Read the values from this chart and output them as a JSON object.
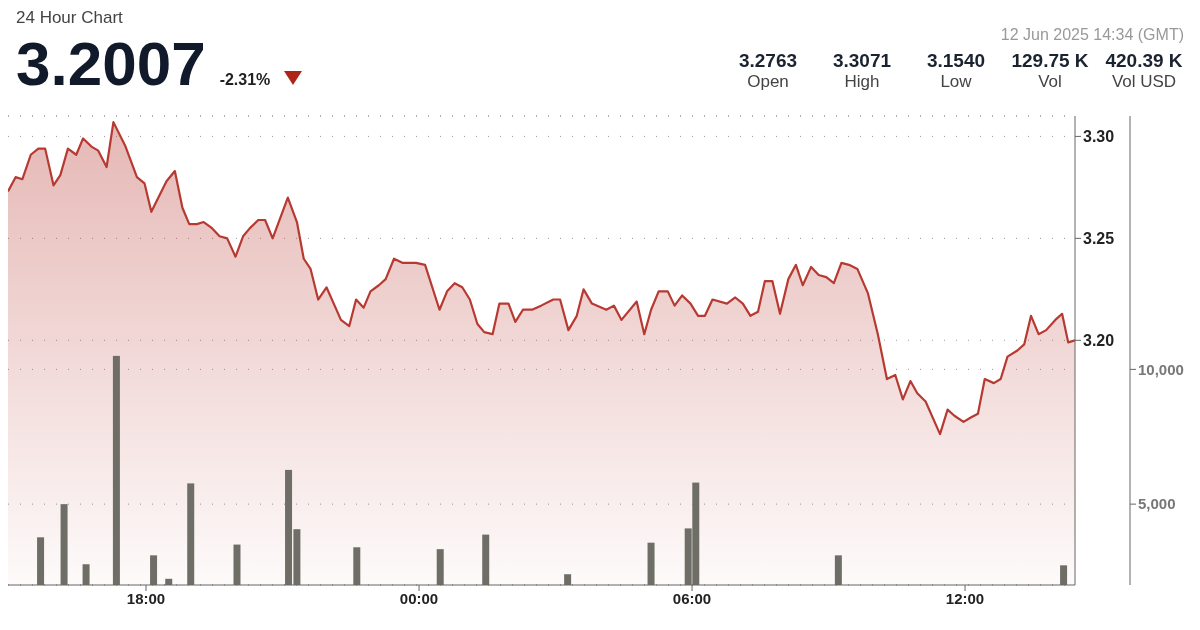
{
  "chart_data": {
    "type": "area",
    "title": "24 Hour Chart",
    "annotations": [
      "3.2007",
      "-2.31%",
      "12 Jun 2025 14:34 (GMT)",
      "3.2763",
      "Open",
      "3.3071",
      "High",
      "3.1540",
      "Low",
      "129.75 K",
      "Vol",
      "420.39 K",
      "Vol USD"
    ],
    "xlim": [
      "2025-06-11T14:58",
      "2025-06-12T14:25"
    ],
    "xticks": [
      {
        "value": "2025-06-11T18:00",
        "label": "18:00"
      },
      {
        "value": "2025-06-12T00:00",
        "label": "00:00"
      },
      {
        "value": "2025-06-12T06:00",
        "label": "06:00"
      },
      {
        "value": "2025-06-12T12:00",
        "label": "12:00"
      }
    ],
    "ylim": [
      3.08,
      3.31
    ],
    "yticks": [
      {
        "value": 3.2,
        "label": "3.20"
      },
      3.25,
      {
        "value": 3.3,
        "label": "3.30"
      }
    ],
    "y2lim": [
      2000,
      19400
    ],
    "y2ticks": [
      {
        "value": 5000,
        "label": "5,000"
      },
      {
        "value": 10000,
        "label": "10,000"
      }
    ],
    "grid": "y",
    "legend": false,
    "series": [
      {
        "color": "#b73a32",
        "x": [
          "2025-06-11T14:58",
          "2025-06-11T15:08",
          "2025-06-11T15:17",
          "2025-06-11T15:28",
          "2025-06-11T15:38",
          "2025-06-11T15:47",
          "2025-06-11T15:58",
          "2025-06-11T16:07",
          "2025-06-11T16:17",
          "2025-06-11T16:28",
          "2025-06-11T16:37",
          "2025-06-11T16:48",
          "2025-06-11T16:57",
          "2025-06-11T17:08",
          "2025-06-11T17:17",
          "2025-06-11T17:33",
          "2025-06-11T17:48",
          "2025-06-11T17:58",
          "2025-06-11T18:07",
          "2025-06-11T18:27",
          "2025-06-11T18:38",
          "2025-06-11T18:48",
          "2025-06-11T18:57",
          "2025-06-11T19:07",
          "2025-06-11T19:16",
          "2025-06-11T19:27",
          "2025-06-11T19:37",
          "2025-06-11T19:47",
          "2025-06-11T19:58",
          "2025-06-11T20:08",
          "2025-06-11T20:17",
          "2025-06-11T20:28",
          "2025-06-11T20:37",
          "2025-06-11T20:47",
          "2025-06-11T21:07",
          "2025-06-11T21:19",
          "2025-06-11T21:28",
          "2025-06-11T21:37",
          "2025-06-11T21:47",
          "2025-06-11T21:58",
          "2025-06-11T22:17",
          "2025-06-11T22:28",
          "2025-06-11T22:37",
          "2025-06-11T22:47",
          "2025-06-11T22:56",
          "2025-06-11T23:07",
          "2025-06-11T23:16",
          "2025-06-11T23:27",
          "2025-06-11T23:38",
          "2025-06-11T23:56",
          "2025-06-12T00:08",
          "2025-06-12T00:27",
          "2025-06-12T00:37",
          "2025-06-12T00:47",
          "2025-06-12T00:57",
          "2025-06-12T01:07",
          "2025-06-12T01:17",
          "2025-06-12T01:26",
          "2025-06-12T01:37",
          "2025-06-12T01:46",
          "2025-06-12T01:58",
          "2025-06-12T02:07",
          "2025-06-12T02:17",
          "2025-06-12T02:29",
          "2025-06-12T02:41",
          "2025-06-12T02:57",
          "2025-06-12T03:06",
          "2025-06-12T03:17",
          "2025-06-12T03:28",
          "2025-06-12T03:37",
          "2025-06-12T03:48",
          "2025-06-12T04:07",
          "2025-06-12T04:17",
          "2025-06-12T04:27",
          "2025-06-12T04:47",
          "2025-06-12T04:57",
          "2025-06-12T05:06",
          "2025-06-12T05:16",
          "2025-06-12T05:28",
          "2025-06-12T05:37",
          "2025-06-12T05:47",
          "2025-06-12T05:58",
          "2025-06-12T06:08",
          "2025-06-12T06:17",
          "2025-06-12T06:27",
          "2025-06-12T06:46",
          "2025-06-12T06:57",
          "2025-06-12T07:07",
          "2025-06-12T07:17",
          "2025-06-12T07:27",
          "2025-06-12T07:36",
          "2025-06-12T07:46",
          "2025-06-12T07:56",
          "2025-06-12T08:07",
          "2025-06-12T08:17",
          "2025-06-12T08:26",
          "2025-06-12T08:37",
          "2025-06-12T08:47",
          "2025-06-12T08:57",
          "2025-06-12T09:07",
          "2025-06-12T09:17",
          "2025-06-12T09:27",
          "2025-06-12T09:38",
          "2025-06-12T09:52",
          "2025-06-12T10:05",
          "2025-06-12T10:17",
          "2025-06-12T10:28",
          "2025-06-12T10:38",
          "2025-06-12T10:48",
          "2025-06-12T10:57",
          "2025-06-12T11:08",
          "2025-06-12T11:27",
          "2025-06-12T11:37",
          "2025-06-12T11:46",
          "2025-06-12T11:58",
          "2025-06-12T12:07",
          "2025-06-12T12:17",
          "2025-06-12T12:26",
          "2025-06-12T12:38",
          "2025-06-12T12:47",
          "2025-06-12T12:56",
          "2025-06-12T13:09",
          "2025-06-12T13:18",
          "2025-06-12T13:27",
          "2025-06-12T13:37",
          "2025-06-12T13:47",
          "2025-06-12T13:59",
          "2025-06-12T14:08",
          "2025-06-12T14:16",
          "2025-06-12T14:25"
        ],
        "values": [
          3.273,
          3.28,
          3.279,
          3.291,
          3.294,
          3.294,
          3.276,
          3.281,
          3.294,
          3.291,
          3.299,
          3.295,
          3.293,
          3.285,
          3.307,
          3.295,
          3.28,
          3.277,
          3.263,
          3.278,
          3.283,
          3.265,
          3.257,
          3.257,
          3.258,
          3.255,
          3.251,
          3.25,
          3.241,
          3.251,
          3.255,
          3.259,
          3.259,
          3.25,
          3.27,
          3.258,
          3.24,
          3.235,
          3.22,
          3.226,
          3.21,
          3.207,
          3.22,
          3.216,
          3.224,
          3.227,
          3.23,
          3.24,
          3.238,
          3.238,
          3.237,
          3.215,
          3.224,
          3.228,
          3.226,
          3.22,
          3.208,
          3.204,
          3.203,
          3.218,
          3.218,
          3.209,
          3.215,
          3.215,
          3.217,
          3.22,
          3.22,
          3.205,
          3.212,
          3.225,
          3.218,
          3.215,
          3.217,
          3.21,
          3.219,
          3.203,
          3.215,
          3.224,
          3.224,
          3.217,
          3.222,
          3.218,
          3.212,
          3.212,
          3.22,
          3.218,
          3.221,
          3.218,
          3.212,
          3.214,
          3.229,
          3.229,
          3.213,
          3.23,
          3.237,
          3.227,
          3.236,
          3.232,
          3.231,
          3.228,
          3.238,
          3.237,
          3.235,
          3.223,
          3.203,
          3.181,
          3.183,
          3.171,
          3.18,
          3.174,
          3.17,
          3.154,
          3.166,
          3.163,
          3.16,
          3.162,
          3.164,
          3.181,
          3.179,
          3.181,
          3.192,
          3.195,
          3.198,
          3.212,
          3.203,
          3.205,
          3.21,
          3.213,
          3.199,
          3.2
        ]
      },
      {
        "type": "bar",
        "axis": "y2",
        "color": "#6e6e66",
        "x": [
          "2025-06-11T15:41",
          "2025-06-11T16:12",
          "2025-06-11T16:41",
          "2025-06-11T17:21",
          "2025-06-11T18:10",
          "2025-06-11T18:30",
          "2025-06-11T18:59",
          "2025-06-11T20:00",
          "2025-06-11T21:08",
          "2025-06-11T21:19",
          "2025-06-11T22:38",
          "2025-06-12T00:28",
          "2025-06-12T01:28",
          "2025-06-12T03:16",
          "2025-06-12T05:06",
          "2025-06-12T05:55",
          "2025-06-12T06:05",
          "2025-06-12T09:13",
          "2025-06-12T14:10"
        ],
        "values": [
          3770,
          5000,
          2770,
          10500,
          3100,
          2230,
          5770,
          3500,
          6270,
          4070,
          3400,
          3330,
          3870,
          2400,
          3570,
          4100,
          5800,
          3100,
          2730
        ]
      }
    ]
  }
}
